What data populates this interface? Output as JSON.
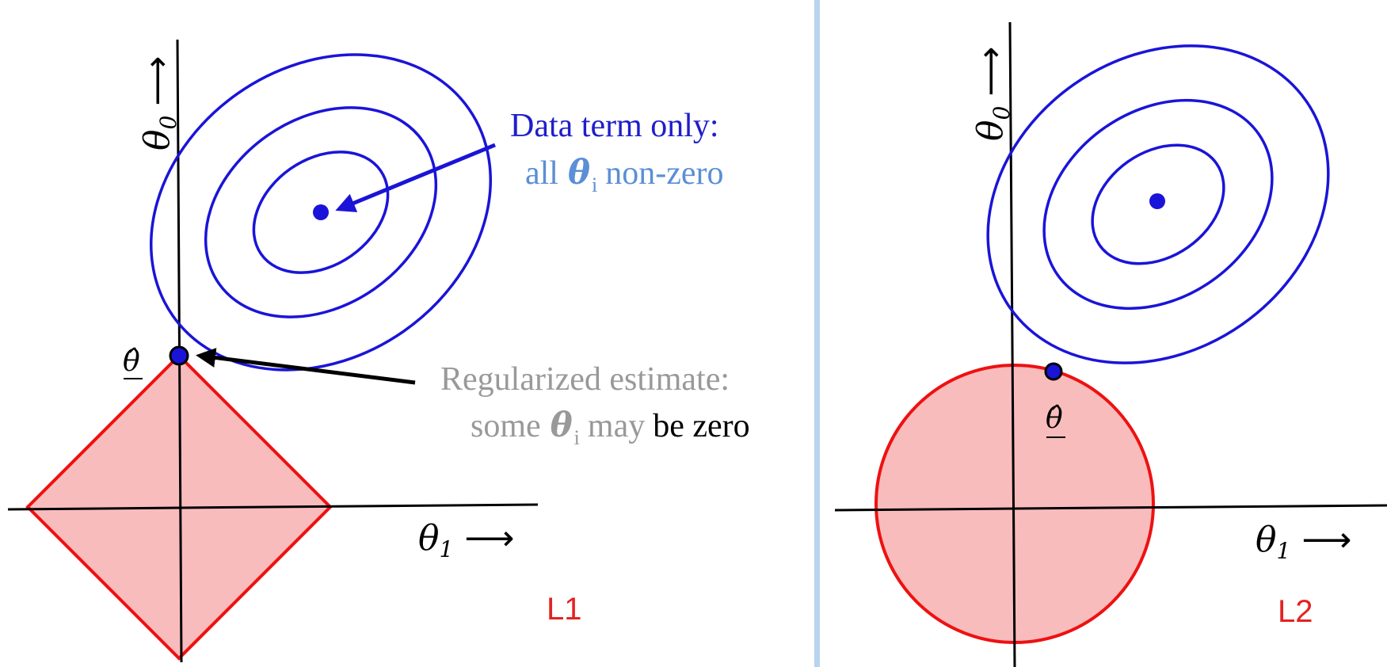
{
  "colors": {
    "contour": "#1a14d8",
    "constraint_stroke": "#ee1111",
    "constraint_fill": "#f9bcbc",
    "axis": "#000000",
    "divider": "#b8d4ee",
    "label_blue_dark": "#1e1ecc",
    "label_blue_light": "#5b8fd6",
    "label_gray": "#999999",
    "panel_tag": "#e32222"
  },
  "left_panel": {
    "tag": "L1",
    "axis_y_symbol": "θ",
    "axis_y_sub": "0",
    "axis_y_arrow": "⟶",
    "axis_x_symbol": "θ",
    "axis_x_sub": "1",
    "axis_x_arrow": "⟶",
    "estimate_symbol": "θ̂",
    "annotation_data_line1": "Data term only:",
    "annotation_data_line2_pre": "all",
    "annotation_data_line2_sym": "θ",
    "annotation_data_line2_sub": "i",
    "annotation_data_line2_post": "non-zero",
    "annotation_reg_line1": "Regularized estimate:",
    "annotation_reg_line2_pre": "some",
    "annotation_reg_line2_sym": "θ",
    "annotation_reg_line2_sub": "i",
    "annotation_reg_line2_mid": "may",
    "annotation_reg_line2_post": "be zero"
  },
  "right_panel": {
    "tag": "L2",
    "axis_y_symbol": "θ",
    "axis_y_sub": "0",
    "axis_y_arrow": "⟶",
    "axis_x_symbol": "θ",
    "axis_x_sub": "1",
    "axis_x_arrow": "⟶",
    "estimate_symbol": "θ̂"
  }
}
